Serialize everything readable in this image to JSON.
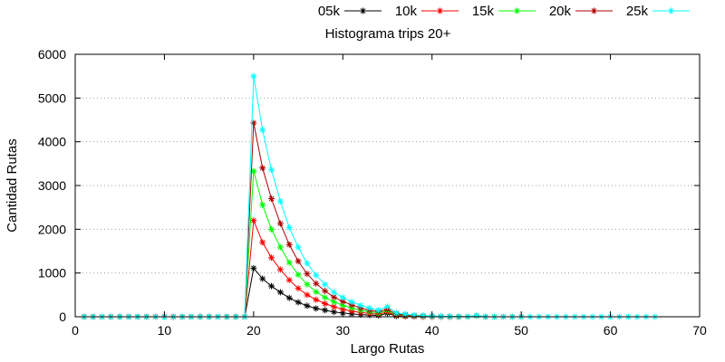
{
  "chart_data": {
    "type": "line",
    "title": "Histograma trips 20+",
    "xlabel": "Largo Rutas",
    "ylabel": "Cantidad Rutas",
    "xlim": [
      0,
      70
    ],
    "ylim": [
      0,
      6000
    ],
    "xticks": [
      0,
      10,
      20,
      30,
      40,
      50,
      60,
      70
    ],
    "yticks": [
      0,
      1000,
      2000,
      3000,
      4000,
      5000,
      6000
    ],
    "grid": "horizontal dotted",
    "legend_position": "top-right",
    "series": [
      {
        "name": "05k",
        "color": "#000000",
        "x": [
          1,
          2,
          3,
          4,
          5,
          6,
          7,
          8,
          9,
          10,
          11,
          12,
          13,
          14,
          15,
          16,
          17,
          18,
          19,
          20,
          21,
          22,
          23,
          24,
          25,
          26,
          27,
          28,
          29,
          30,
          31,
          32,
          33,
          34,
          35,
          36,
          37,
          38,
          39,
          40,
          41,
          42,
          43
        ],
        "y": [
          0,
          0,
          0,
          0,
          0,
          0,
          0,
          0,
          0,
          0,
          0,
          0,
          0,
          0,
          0,
          0,
          0,
          0,
          0,
          1110,
          870,
          700,
          560,
          430,
          330,
          250,
          190,
          150,
          110,
          85,
          65,
          50,
          40,
          30,
          80,
          15,
          10,
          5,
          3,
          2,
          1,
          0,
          0
        ]
      },
      {
        "name": "10k",
        "color": "#ff0000",
        "x": [
          1,
          2,
          3,
          4,
          5,
          6,
          7,
          8,
          9,
          10,
          11,
          12,
          13,
          14,
          15,
          16,
          17,
          18,
          19,
          20,
          21,
          22,
          23,
          24,
          25,
          26,
          27,
          28,
          29,
          30,
          31,
          32,
          33,
          34,
          35,
          36,
          37,
          38,
          39,
          40,
          41,
          42,
          43
        ],
        "y": [
          0,
          0,
          0,
          0,
          0,
          0,
          0,
          0,
          0,
          0,
          0,
          0,
          0,
          0,
          0,
          0,
          0,
          0,
          0,
          2200,
          1700,
          1350,
          1080,
          840,
          650,
          500,
          390,
          300,
          230,
          170,
          130,
          100,
          75,
          55,
          110,
          30,
          20,
          12,
          8,
          5,
          3,
          0,
          0
        ]
      },
      {
        "name": "15k",
        "color": "#00ff00",
        "x": [
          1,
          2,
          3,
          4,
          5,
          6,
          7,
          8,
          9,
          10,
          11,
          12,
          13,
          14,
          15,
          16,
          17,
          18,
          19,
          20,
          21,
          22,
          23,
          24,
          25,
          26,
          27,
          28,
          29,
          30,
          31,
          32,
          33,
          34,
          35,
          36,
          37,
          38,
          39,
          40,
          41,
          42,
          43,
          44,
          45,
          46,
          47,
          48,
          49,
          50
        ],
        "y": [
          0,
          0,
          0,
          0,
          0,
          0,
          0,
          0,
          0,
          0,
          0,
          0,
          0,
          0,
          0,
          0,
          0,
          0,
          0,
          3330,
          2560,
          2000,
          1590,
          1240,
          960,
          740,
          570,
          440,
          340,
          260,
          200,
          150,
          115,
          85,
          140,
          50,
          35,
          25,
          15,
          10,
          6,
          4,
          2,
          1,
          20,
          0,
          0,
          0,
          0,
          0
        ]
      },
      {
        "name": "20k",
        "color": "#aa0000",
        "x": [
          1,
          2,
          3,
          4,
          5,
          6,
          7,
          8,
          9,
          10,
          11,
          12,
          13,
          14,
          15,
          16,
          17,
          18,
          19,
          20,
          21,
          22,
          23,
          24,
          25,
          26,
          27,
          28,
          29,
          30,
          31,
          32,
          33,
          34,
          35,
          36,
          37,
          38,
          39,
          40,
          41,
          42,
          43,
          44,
          45,
          46,
          47,
          48,
          49,
          50
        ],
        "y": [
          0,
          0,
          0,
          0,
          0,
          0,
          0,
          0,
          0,
          0,
          0,
          0,
          0,
          0,
          0,
          0,
          0,
          0,
          0,
          4430,
          3400,
          2700,
          2130,
          1650,
          1270,
          980,
          760,
          590,
          450,
          350,
          270,
          200,
          150,
          115,
          170,
          65,
          45,
          30,
          20,
          13,
          8,
          5,
          3,
          2,
          25,
          0,
          0,
          0,
          0,
          0
        ]
      },
      {
        "name": "25k",
        "color": "#00ffff",
        "x": [
          1,
          2,
          3,
          4,
          5,
          6,
          7,
          8,
          9,
          10,
          11,
          12,
          13,
          14,
          15,
          16,
          17,
          18,
          19,
          20,
          21,
          22,
          23,
          24,
          25,
          26,
          27,
          28,
          29,
          30,
          31,
          32,
          33,
          34,
          35,
          36,
          37,
          38,
          39,
          40,
          41,
          42,
          43,
          44,
          45,
          46,
          47,
          48,
          49,
          50,
          51,
          52,
          53,
          54,
          55,
          56,
          57,
          58,
          59,
          60,
          61,
          62,
          63,
          64,
          65
        ],
        "y": [
          0,
          0,
          0,
          0,
          0,
          0,
          0,
          0,
          0,
          0,
          0,
          0,
          0,
          0,
          0,
          0,
          0,
          0,
          0,
          5500,
          4270,
          3360,
          2640,
          2040,
          1590,
          1220,
          950,
          740,
          560,
          440,
          340,
          260,
          200,
          150,
          230,
          90,
          60,
          40,
          28,
          18,
          12,
          8,
          5,
          3,
          30,
          2,
          1,
          1,
          0,
          0,
          0,
          0,
          0,
          0,
          0,
          0,
          0,
          0,
          0,
          0,
          0,
          0,
          0,
          0,
          0
        ]
      }
    ]
  }
}
